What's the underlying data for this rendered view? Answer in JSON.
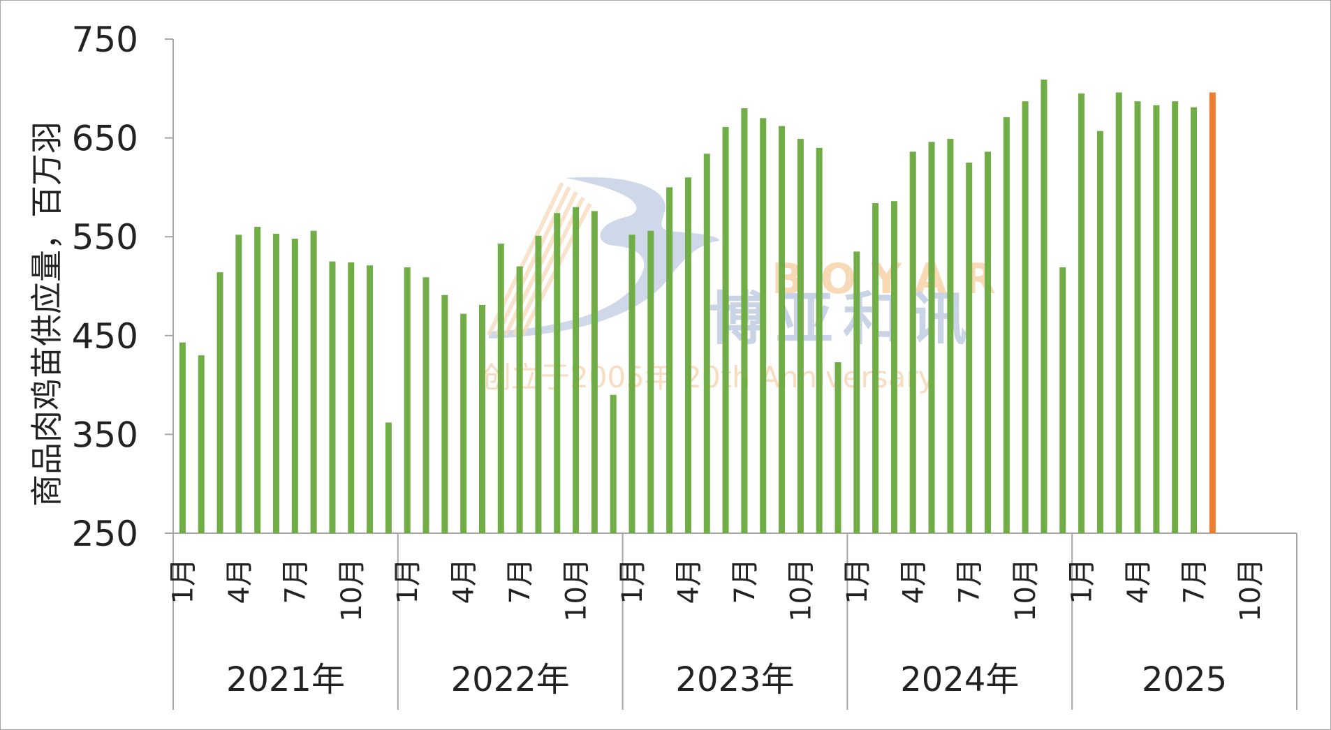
{
  "watermark": {
    "en": "BOYAR",
    "cn": "博亚和讯",
    "sub": "创立于2005年 20th Anniversary"
  },
  "chart_data": {
    "type": "bar",
    "ylabel": "商品肉鸡苗供应量，百万羽",
    "ylim": [
      250,
      750
    ],
    "yticks": [
      250,
      350,
      450,
      550,
      650,
      750
    ],
    "month_labels": [
      "1月",
      "4月",
      "7月",
      "10月"
    ],
    "years": [
      "2021年",
      "2022年",
      "2023年",
      "2024年",
      "2025"
    ],
    "months_per_year": 12,
    "colors": {
      "normal": "#70ad47",
      "highlight": "#ed7d31",
      "axis": "#a6a6a6"
    },
    "highlight_index": 55,
    "values": [
      443,
      430,
      514,
      552,
      560,
      553,
      548,
      556,
      525,
      524,
      521,
      362,
      519,
      509,
      491,
      472,
      481,
      543,
      520,
      551,
      574,
      580,
      576,
      390,
      552,
      556,
      600,
      610,
      634,
      661,
      680,
      670,
      662,
      649,
      640,
      423,
      535,
      584,
      586,
      636,
      646,
      649,
      625,
      636,
      671,
      687,
      709,
      519,
      695,
      657,
      696,
      687,
      683,
      687,
      681,
      696
    ]
  }
}
